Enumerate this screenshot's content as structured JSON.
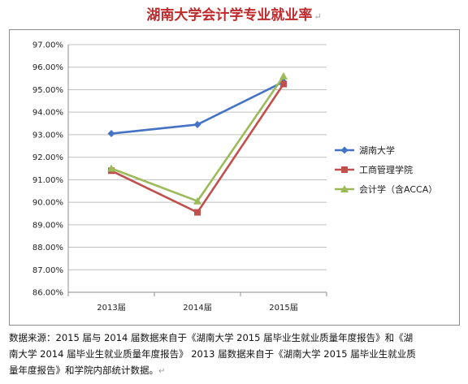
{
  "page": {
    "title": "湖南大学会计学专业就业率",
    "para_mark": "↵",
    "note_lines": [
      "数据来源：2015 届与 2014 届数据来自于《湖南大学 2015 届毕业生就业质量年度报告》和《湖",
      "南大学 2014 届毕业生就业质量年度报告》 2013 届数据来自于《湖南大学 2015 届毕业生就业质",
      "量年度报告》和学院内部统计数据。"
    ]
  },
  "colors": {
    "title": "#c0292c",
    "series": [
      "#4472c4",
      "#c0504d",
      "#9bbb59"
    ],
    "grid": "#bfbfbf",
    "axis": "#8c8c8c"
  },
  "chart_data": {
    "type": "line",
    "categories": [
      "2013届",
      "2014届",
      "2015届"
    ],
    "series": [
      {
        "name": "湖南大学",
        "marker": "diamond",
        "values": [
          93.05,
          93.45,
          95.35
        ]
      },
      {
        "name": "工商管理学院",
        "marker": "square",
        "values": [
          91.4,
          89.55,
          95.25
        ]
      },
      {
        "name": "会计学（含ACCA）",
        "marker": "triangle",
        "values": [
          91.5,
          90.05,
          95.6
        ]
      }
    ],
    "ylim": [
      86,
      97
    ],
    "ystep": 1,
    "ytick_labels": [
      "86.00%",
      "87.00%",
      "88.00%",
      "89.00%",
      "90.00%",
      "91.00%",
      "92.00%",
      "93.00%",
      "94.00%",
      "95.00%",
      "96.00%",
      "97.00%"
    ],
    "grid": true,
    "legend_position": "right",
    "xlabel": "",
    "ylabel": ""
  }
}
